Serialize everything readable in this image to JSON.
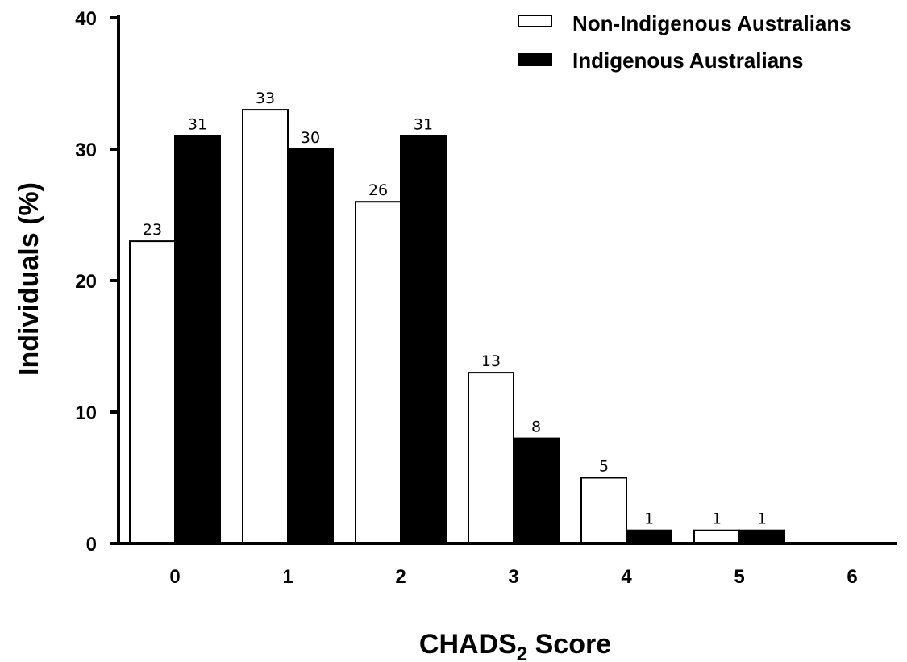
{
  "chart_data": {
    "type": "bar",
    "categories": [
      "0",
      "1",
      "2",
      "3",
      "4",
      "5",
      "6"
    ],
    "series": [
      {
        "name": "Non-Indigenous Australians",
        "values": [
          23,
          33,
          26,
          13,
          5,
          1,
          null
        ],
        "fill": "#ffffff"
      },
      {
        "name": "Indigenous Australians",
        "values": [
          31,
          30,
          31,
          8,
          1,
          1,
          null
        ],
        "fill": "#000000"
      }
    ],
    "data_labels": [
      [
        "23",
        "33",
        "26",
        "13",
        "5",
        "1",
        ""
      ],
      [
        "31",
        "30",
        "31",
        "8",
        "1",
        "1",
        ""
      ]
    ],
    "title": "",
    "xlabel": {
      "main": "CHADS",
      "sub": "2",
      "suffix": " Score"
    },
    "ylabel": "Individuals (%)",
    "ylim": [
      0,
      40
    ],
    "yticks": [
      "0",
      "10",
      "20",
      "30",
      "40"
    ],
    "grid": false,
    "legend_position": "top-right"
  }
}
